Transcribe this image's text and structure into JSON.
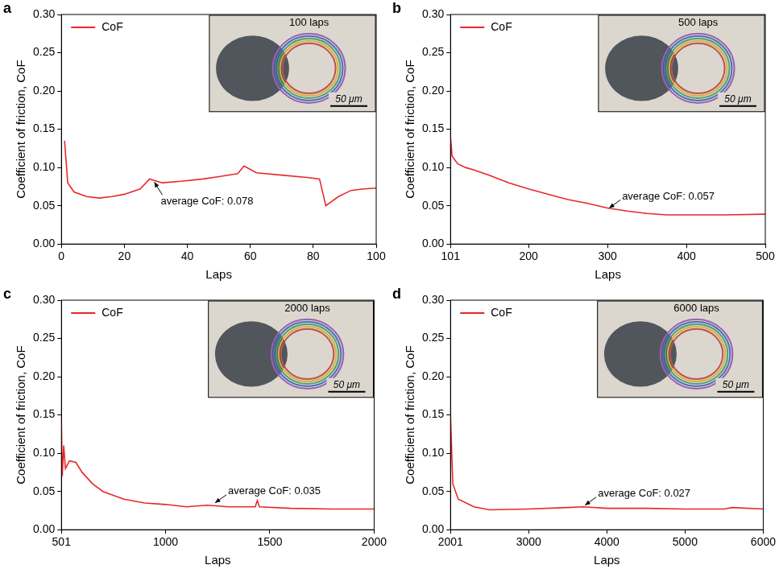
{
  "chart_data": [
    {
      "type": "line",
      "panel_label": "a",
      "x_label": "Laps",
      "y_label": "Coefficient of friction, CoF",
      "x": [
        1,
        2,
        4,
        8,
        12,
        16,
        20,
        25,
        28,
        32,
        38,
        45,
        50,
        56,
        58,
        62,
        70,
        78,
        82,
        84,
        88,
        92,
        96,
        100
      ],
      "series": [
        {
          "name": "CoF",
          "color": "#e8272b",
          "values": [
            0.135,
            0.08,
            0.068,
            0.062,
            0.06,
            0.062,
            0.065,
            0.072,
            0.085,
            0.08,
            0.082,
            0.085,
            0.088,
            0.092,
            0.102,
            0.093,
            0.09,
            0.087,
            0.085,
            0.05,
            0.062,
            0.07,
            0.072,
            0.073
          ]
        }
      ],
      "xlim": [
        0,
        100
      ],
      "xticks": [
        0,
        20,
        40,
        60,
        80,
        100
      ],
      "ylim": [
        0,
        0.3
      ],
      "yticks": [
        {
          "value": 0,
          "label": "0.00"
        },
        {
          "value": 0.05,
          "label": "0.05"
        },
        {
          "value": 0.1,
          "label": "0.10"
        },
        {
          "value": 0.15,
          "label": "0.15"
        },
        {
          "value": 0.2,
          "label": "0.20"
        },
        {
          "value": 0.25,
          "label": "0.25"
        },
        {
          "value": 0.3,
          "label": "0.30"
        }
      ],
      "grid": false,
      "legend": "upper left",
      "annotations": [
        {
          "text": "average CoF: 0.078",
          "x": 29,
          "y": 0.083
        }
      ],
      "inset": {
        "title": "100 laps",
        "scale_bar": "50 μm"
      }
    },
    {
      "type": "line",
      "panel_label": "b",
      "x_label": "Laps",
      "y_label": "Coefficient of friction, CoF",
      "x": [
        101,
        103,
        110,
        120,
        130,
        150,
        175,
        200,
        225,
        250,
        275,
        300,
        325,
        350,
        375,
        400,
        450,
        500
      ],
      "series": [
        {
          "name": "CoF",
          "color": "#e8272b",
          "values": [
            0.14,
            0.115,
            0.105,
            0.1,
            0.097,
            0.09,
            0.08,
            0.072,
            0.065,
            0.058,
            0.053,
            0.047,
            0.043,
            0.04,
            0.038,
            0.038,
            0.038,
            0.039
          ]
        }
      ],
      "xlim": [
        101,
        500
      ],
      "xticks": [
        101,
        200,
        300,
        400,
        500
      ],
      "ylim": [
        0,
        0.3
      ],
      "yticks": [
        {
          "value": 0,
          "label": "0.00"
        },
        {
          "value": 0.05,
          "label": "0.05"
        },
        {
          "value": 0.1,
          "label": "0.10"
        },
        {
          "value": 0.15,
          "label": "0.15"
        },
        {
          "value": 0.2,
          "label": "0.20"
        },
        {
          "value": 0.25,
          "label": "0.25"
        },
        {
          "value": 0.3,
          "label": "0.30"
        }
      ],
      "grid": false,
      "legend": "upper left",
      "annotations": [
        {
          "text": "average CoF: 0.057",
          "x": 300,
          "y": 0.045
        }
      ],
      "inset": {
        "title": "500 laps",
        "scale_bar": "50 μm"
      }
    },
    {
      "type": "line",
      "panel_label": "c",
      "x_label": "Laps",
      "y_label": "Coefficient of friction, CoF",
      "x": [
        501,
        505,
        512,
        520,
        540,
        570,
        600,
        650,
        700,
        800,
        900,
        1000,
        1100,
        1200,
        1300,
        1430,
        1440,
        1450,
        1600,
        1800,
        2000
      ],
      "series": [
        {
          "name": "CoF",
          "color": "#e8272b",
          "values": [
            0.14,
            0.07,
            0.11,
            0.08,
            0.09,
            0.088,
            0.075,
            0.06,
            0.05,
            0.04,
            0.035,
            0.033,
            0.03,
            0.032,
            0.03,
            0.03,
            0.038,
            0.03,
            0.028,
            0.027,
            0.027
          ]
        }
      ],
      "xlim": [
        501,
        2000
      ],
      "xticks": [
        501,
        1000,
        1500,
        2000
      ],
      "ylim": [
        0,
        0.3
      ],
      "yticks": [
        {
          "value": 0,
          "label": "0.00"
        },
        {
          "value": 0.05,
          "label": "0.05"
        },
        {
          "value": 0.1,
          "label": "0.10"
        },
        {
          "value": 0.15,
          "label": "0.15"
        },
        {
          "value": 0.2,
          "label": "0.20"
        },
        {
          "value": 0.25,
          "label": "0.25"
        },
        {
          "value": 0.3,
          "label": "0.30"
        }
      ],
      "grid": false,
      "legend": "upper left",
      "annotations": [
        {
          "text": "average CoF: 0.035",
          "x": 1230,
          "y": 0.033
        }
      ],
      "inset": {
        "title": "2000 laps",
        "scale_bar": "50 μm"
      }
    },
    {
      "type": "line",
      "panel_label": "d",
      "x_label": "Laps",
      "y_label": "Coefficient of friction, CoF",
      "x": [
        2001,
        2030,
        2100,
        2300,
        2500,
        3000,
        3500,
        3700,
        4000,
        4500,
        5000,
        5500,
        5600,
        6000
      ],
      "series": [
        {
          "name": "CoF",
          "color": "#e8272b",
          "values": [
            0.15,
            0.06,
            0.04,
            0.03,
            0.026,
            0.027,
            0.029,
            0.03,
            0.028,
            0.028,
            0.027,
            0.027,
            0.029,
            0.027
          ]
        }
      ],
      "xlim": [
        2001,
        6000
      ],
      "xticks": [
        2001,
        3000,
        4000,
        5000,
        6000
      ],
      "ylim": [
        0,
        0.3
      ],
      "yticks": [
        {
          "value": 0,
          "label": "0.00"
        },
        {
          "value": 0.05,
          "label": "0.05"
        },
        {
          "value": 0.1,
          "label": "0.10"
        },
        {
          "value": 0.15,
          "label": "0.15"
        },
        {
          "value": 0.2,
          "label": "0.20"
        },
        {
          "value": 0.25,
          "label": "0.25"
        },
        {
          "value": 0.3,
          "label": "0.30"
        }
      ],
      "grid": false,
      "legend": "upper left",
      "annotations": [
        {
          "text": "average CoF: 0.027",
          "x": 3700,
          "y": 0.03
        }
      ],
      "inset": {
        "title": "6000 laps",
        "scale_bar": "50 μm"
      }
    }
  ]
}
